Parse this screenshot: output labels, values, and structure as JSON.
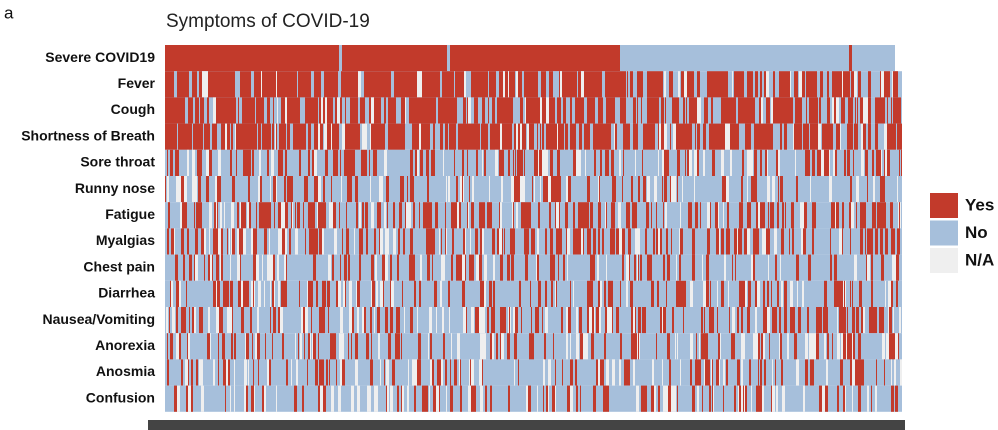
{
  "chart_data": {
    "type": "heatmap",
    "panel_label": "a",
    "title": "Symptoms of COVID-19",
    "rows": [
      "Severe COVID19",
      "Fever",
      "Cough",
      "Shortness of Breath",
      "Sore throat",
      "Runny nose",
      "Fatigue",
      "Myalgias",
      "Chest pain",
      "Diarrhea",
      "Nausea/Vomiting",
      "Anorexia",
      "Anosmia",
      "Confusion"
    ],
    "legend": [
      {
        "name": "Yes",
        "color": "#c23a2b"
      },
      {
        "name": "No",
        "color": "#a6bfdb"
      },
      {
        "name": "N/A",
        "color": "#efefef"
      }
    ]
  }
}
